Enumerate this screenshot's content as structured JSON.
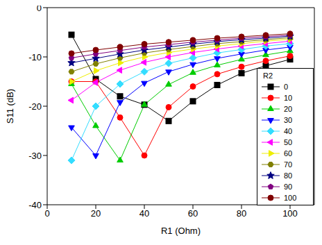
{
  "chart_data": {
    "type": "line",
    "xlabel": "R1 (Ohm)",
    "ylabel": "S11 (dB)",
    "x": [
      10,
      20,
      30,
      40,
      50,
      60,
      70,
      80,
      90,
      100
    ],
    "xlim": [
      0,
      110
    ],
    "xticks": [
      0,
      20,
      40,
      60,
      80,
      100
    ],
    "ylim": [
      -40,
      0
    ],
    "yticks": [
      -40,
      -30,
      -20,
      -10,
      0
    ],
    "grid": false,
    "legend": "lower right",
    "legend_title": "R2",
    "series": [
      {
        "name": "0",
        "color": "#000000",
        "marker": "square",
        "values": [
          -5.5,
          -14.5,
          -18,
          -19.7,
          -23,
          -19,
          -15.7,
          -13.3,
          -11.8,
          -10.5
        ]
      },
      {
        "name": "10",
        "color": "#ff0000",
        "marker": "circle",
        "values": [
          -15,
          -15,
          -22.3,
          -30,
          -20.2,
          -16,
          -13.5,
          -12,
          -10.8,
          -9.8
        ]
      },
      {
        "name": "20",
        "color": "#00cc00",
        "marker": "triangle-up",
        "values": [
          -15.5,
          -24,
          -31,
          -19.7,
          -15.6,
          -13.2,
          -11.7,
          -10.5,
          -9.6,
          -8.8
        ]
      },
      {
        "name": "30",
        "color": "#0000ff",
        "marker": "triangle-down",
        "values": [
          -24.3,
          -30,
          -19.2,
          -15.3,
          -13,
          -11.5,
          -10.3,
          -9.4,
          -8.6,
          -8
        ]
      },
      {
        "name": "40",
        "color": "#33ddff",
        "marker": "diamond",
        "values": [
          -31,
          -20,
          -15.5,
          -13,
          -11.3,
          -10.2,
          -9.2,
          -8.5,
          -7.8,
          -7.3
        ]
      },
      {
        "name": "50",
        "color": "#ff00ff",
        "marker": "triangle-left",
        "values": [
          -18.8,
          -15.2,
          -12.7,
          -11.1,
          -10,
          -9.1,
          -8.4,
          -7.8,
          -7.3,
          -6.8
        ]
      },
      {
        "name": "60",
        "color": "#eeee00",
        "marker": "triangle-right",
        "values": [
          -15,
          -12.8,
          -11.2,
          -10,
          -9.1,
          -8.4,
          -7.8,
          -7.3,
          -6.8,
          -6.4
        ]
      },
      {
        "name": "70",
        "color": "#808000",
        "marker": "hexagon",
        "values": [
          -13,
          -11.4,
          -10.2,
          -9.2,
          -8.5,
          -7.9,
          -7.3,
          -6.9,
          -6.5,
          -6.1
        ]
      },
      {
        "name": "80",
        "color": "#000080",
        "marker": "star",
        "values": [
          -11.2,
          -10.3,
          -9.4,
          -8.6,
          -8,
          -7.4,
          -6.9,
          -6.5,
          -6.2,
          -5.8
        ]
      },
      {
        "name": "90",
        "color": "#800080",
        "marker": "pentagon",
        "values": [
          -10.2,
          -9.4,
          -8.7,
          -8,
          -7.5,
          -7,
          -6.6,
          -6.2,
          -5.9,
          -5.6
        ]
      },
      {
        "name": "100",
        "color": "#800000",
        "marker": "circle",
        "values": [
          -9.3,
          -8.6,
          -8,
          -7.4,
          -7,
          -6.6,
          -6.2,
          -5.9,
          -5.6,
          -5.3
        ]
      }
    ]
  }
}
